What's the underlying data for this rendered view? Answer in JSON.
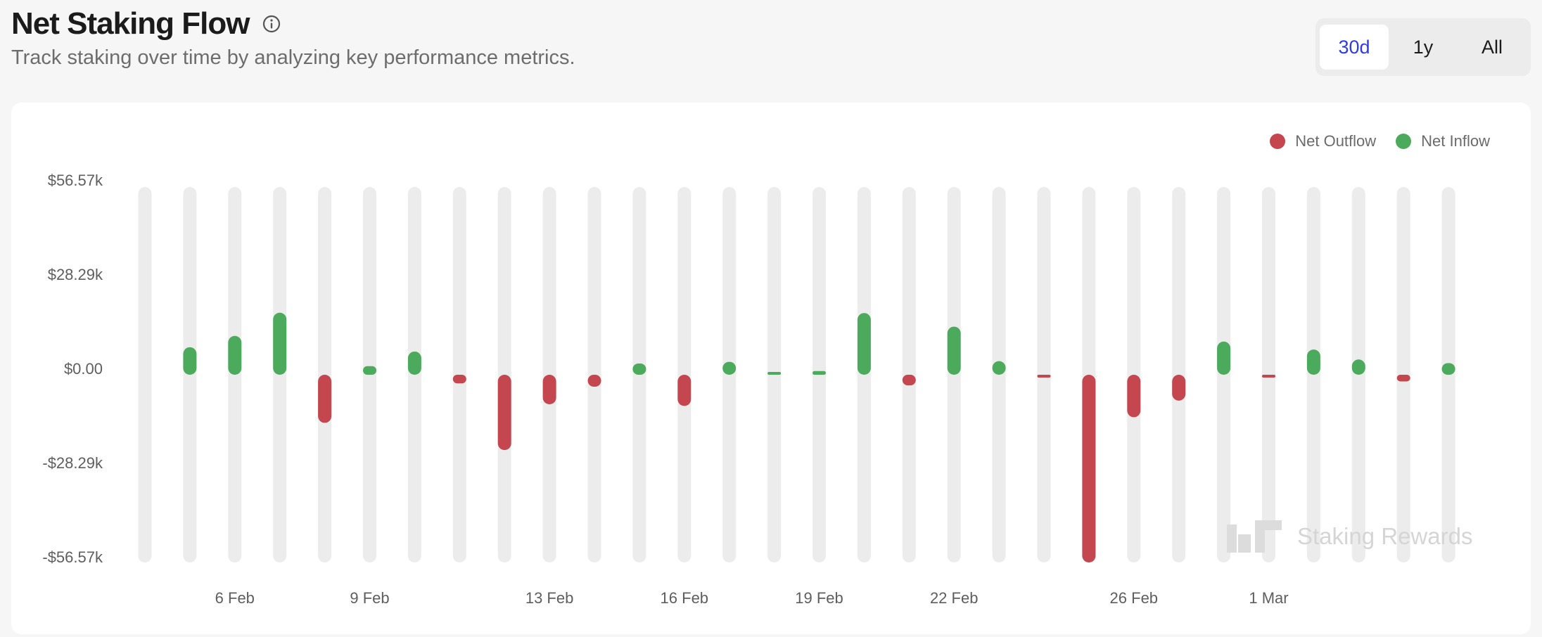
{
  "header": {
    "title": "Net Staking Flow",
    "subtitle": "Track staking over time by analyzing key performance metrics.",
    "info_icon": "info-circle-icon"
  },
  "range": {
    "options": [
      "30d",
      "1y",
      "All"
    ],
    "selected": "30d"
  },
  "watermark": {
    "text": "Staking Rewards",
    "icon": "staking-rewards-logo-icon"
  },
  "colors": {
    "outflow": "#c4464e",
    "inflow": "#4caa5c",
    "track": "#ececec",
    "active_tab": "#2f3be6"
  },
  "chart_data": {
    "type": "bar",
    "ylim": [
      -56570,
      56570
    ],
    "y_ticks": [
      "$56.57k",
      "$28.29k",
      "$0.00",
      "-$28.29k",
      "-$56.57k"
    ],
    "x_ticks": [
      {
        "index": 2,
        "label": "6 Feb"
      },
      {
        "index": 5,
        "label": "9 Feb"
      },
      {
        "index": 9,
        "label": "13 Feb"
      },
      {
        "index": 12,
        "label": "16 Feb"
      },
      {
        "index": 15,
        "label": "19 Feb"
      },
      {
        "index": 18,
        "label": "22 Feb"
      },
      {
        "index": 22,
        "label": "26 Feb"
      },
      {
        "index": 25,
        "label": "1 Mar"
      }
    ],
    "legend": [
      {
        "name": "Net Outflow",
        "color": "#c4464e"
      },
      {
        "name": "Net Inflow",
        "color": "#4caa5c"
      }
    ],
    "legend_position": "top-right",
    "values": [
      0,
      8300,
      11700,
      18700,
      -14500,
      2600,
      7000,
      -2600,
      -22700,
      -8900,
      -3600,
      3400,
      -9400,
      3900,
      800,
      1100,
      18600,
      -3200,
      14500,
      4100,
      -600,
      -56570,
      -12800,
      -7800,
      10000,
      -600,
      7600,
      4600,
      -2000,
      3500
    ]
  }
}
